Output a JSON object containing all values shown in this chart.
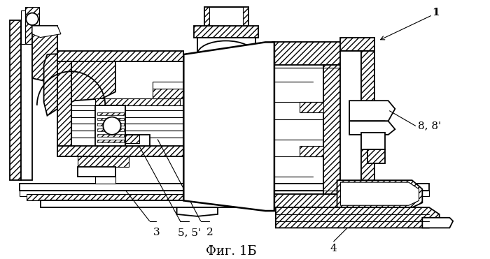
{
  "caption": "Фиг. 1Б",
  "background_color": "#ffffff",
  "caption_fontsize": 13,
  "label_fontsize": 11,
  "figsize": [
    7.0,
    3.71
  ],
  "dpi": 100
}
